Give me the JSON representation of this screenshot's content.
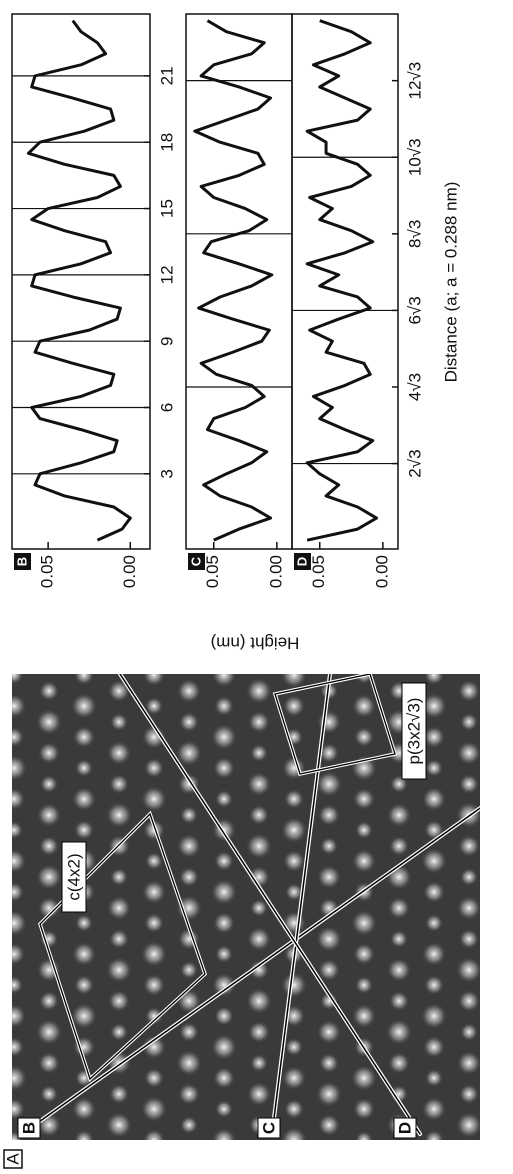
{
  "figure_label": "A",
  "image": {
    "line_labels": [
      "B",
      "C",
      "D"
    ],
    "cell_labels": [
      "c(4x2)",
      "p(3x2√3)"
    ]
  },
  "shared_ylabel": "Height (nm)",
  "xlabel": "Distance (a; a = 0.288 nm)",
  "chart_data": [
    {
      "type": "line",
      "panel_label": "B",
      "color": "#111111",
      "x": [
        0,
        0.5,
        1,
        1.5,
        2,
        2.5,
        3,
        3.5,
        4,
        4.5,
        5,
        5.5,
        6,
        6.5,
        7,
        7.5,
        8,
        8.5,
        9,
        9.5,
        10,
        10.5,
        11,
        11.5,
        12,
        12.5,
        13,
        13.5,
        14,
        14.5,
        15,
        15.5,
        16,
        16.5,
        17,
        17.5,
        18,
        18.5,
        19,
        19.5,
        20,
        20.5,
        21,
        21.5,
        22,
        22.5,
        23,
        23.5
      ],
      "values": [
        0.02,
        0.005,
        0,
        0.01,
        0.04,
        0.058,
        0.055,
        0.03,
        0.01,
        0.008,
        0.03,
        0.055,
        0.06,
        0.03,
        0.012,
        0.01,
        0.035,
        0.058,
        0.055,
        0.025,
        0.008,
        0.006,
        0.035,
        0.06,
        0.058,
        0.03,
        0.012,
        0.015,
        0.04,
        0.06,
        0.05,
        0.02,
        0.006,
        0.01,
        0.04,
        0.062,
        0.055,
        0.028,
        0.01,
        0.012,
        0.035,
        0.06,
        0.058,
        0.03,
        0.015,
        0.02,
        0.03,
        0.035
      ],
      "xlim": [
        -0.4,
        23.8
      ],
      "ylim": [
        -0.012,
        0.072
      ],
      "xticks": [
        3,
        6,
        9,
        12,
        15,
        18,
        21
      ],
      "yticks": [
        {
          "value": 0,
          "label": "0.00"
        },
        {
          "value": 0.05,
          "label": "0.05"
        }
      ],
      "vlines": [
        3,
        6,
        9,
        12,
        15,
        18,
        21
      ]
    },
    {
      "type": "line",
      "panel_label": "C",
      "color": "#111111",
      "x": [
        0,
        0.5,
        1,
        1.5,
        2,
        2.5,
        3,
        3.5,
        4,
        4.5,
        5,
        5.5,
        6,
        6.5,
        7,
        7.5,
        8,
        8.5,
        9,
        9.5,
        10,
        10.5,
        11,
        11.5,
        12,
        12.5,
        13,
        13.5,
        14,
        14.5,
        15,
        15.5,
        16,
        16.5,
        17,
        17.5,
        18,
        18.5,
        19,
        19.5,
        20,
        20.5,
        21,
        21.5,
        22,
        22.5,
        23,
        23.5
      ],
      "values": [
        0.05,
        0.03,
        0.005,
        0.02,
        0.045,
        0.058,
        0.04,
        0.02,
        0.008,
        0.03,
        0.055,
        0.05,
        0.025,
        0.01,
        0.02,
        0.048,
        0.06,
        0.035,
        0.012,
        0.006,
        0.035,
        0.062,
        0.045,
        0.02,
        0.004,
        0.03,
        0.058,
        0.052,
        0.022,
        0.008,
        0.025,
        0.05,
        0.06,
        0.03,
        0.01,
        0.015,
        0.045,
        0.065,
        0.04,
        0.015,
        0.005,
        0.03,
        0.06,
        0.05,
        0.02,
        0.01,
        0.04,
        0.055
      ],
      "xlim": [
        -0.4,
        23.8
      ],
      "ylim": [
        -0.012,
        0.072
      ],
      "yticks": [
        {
          "value": 0,
          "label": "0.00"
        },
        {
          "value": 0.05,
          "label": "0.05"
        }
      ],
      "vlines": [
        6.928,
        13.856,
        20.785
      ]
    },
    {
      "type": "line",
      "panel_label": "D",
      "color": "#111111",
      "x": [
        0,
        0.5,
        1,
        1.5,
        2,
        2.5,
        3,
        3.5,
        4,
        4.5,
        5,
        5.5,
        6,
        6.5,
        7,
        7.5,
        8,
        8.5,
        9,
        9.5,
        10,
        10.5,
        11,
        11.5,
        12,
        12.5,
        13,
        13.5,
        14,
        14.5,
        15,
        15.5,
        16,
        16.5,
        17,
        17.5,
        18,
        18.5,
        19,
        19.5,
        20,
        20.5,
        21,
        21.5,
        22,
        22.5,
        23,
        23.5
      ],
      "values": [
        0.06,
        0.02,
        0.005,
        0.02,
        0.045,
        0.035,
        0.05,
        0.06,
        0.02,
        0.008,
        0.03,
        0.05,
        0.04,
        0.055,
        0.03,
        0.01,
        0.015,
        0.045,
        0.04,
        0.058,
        0.035,
        0.01,
        0.02,
        0.05,
        0.035,
        0.06,
        0.03,
        0.008,
        0.025,
        0.05,
        0.04,
        0.058,
        0.025,
        0.01,
        0.02,
        0.045,
        0.045,
        0.06,
        0.02,
        0.01,
        0.03,
        0.05,
        0.035,
        0.055,
        0.03,
        0.01,
        0.025,
        0.05
      ],
      "xlim": [
        -0.4,
        23.8
      ],
      "ylim": [
        -0.012,
        0.072
      ],
      "xticks": [
        {
          "value": 3.464,
          "label": "2√3"
        },
        {
          "value": 6.928,
          "label": "4√3"
        },
        {
          "value": 10.392,
          "label": "6√3"
        },
        {
          "value": 13.856,
          "label": "8√3"
        },
        {
          "value": 17.321,
          "label": "10√3"
        },
        {
          "value": 20.785,
          "label": "12√3"
        }
      ],
      "yticks": [
        {
          "value": 0,
          "label": "0.00"
        },
        {
          "value": 0.05,
          "label": "0.05"
        }
      ],
      "vlines": [
        3.464,
        10.392,
        17.321
      ]
    }
  ]
}
